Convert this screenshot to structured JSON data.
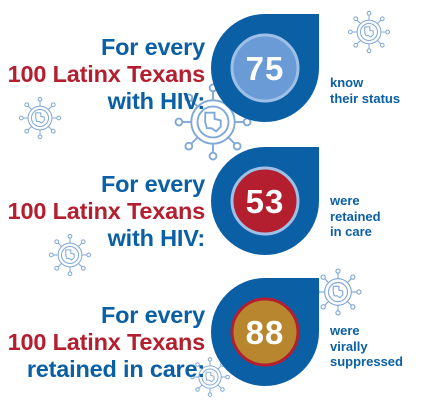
{
  "sections": [
    {
      "heading": [
        "For every",
        "100 Latinx Texans",
        "with HIV:"
      ],
      "number": "75",
      "caption": [
        "know",
        "their status"
      ],
      "inner_color": "#6b9bd7",
      "ring_color": "#0b5fa5"
    },
    {
      "heading": [
        "For every",
        "100 Latinx Texans",
        "with HIV:"
      ],
      "number": "53",
      "caption": [
        "were",
        "retained",
        "in care"
      ],
      "inner_color": "#b31f2e",
      "ring_color": "#0b5fa5"
    },
    {
      "heading": [
        "For every",
        "100 Latinx Texans",
        "retained in care:"
      ],
      "number": "88",
      "caption": [
        "were",
        "virally",
        "suppressed"
      ],
      "inner_color": "#b8862f",
      "ring_color": "#0b5fa5"
    }
  ],
  "colors": {
    "blue": "#0b5fa5",
    "red": "#b31f2e",
    "virus_outline": "#7fa8d6"
  },
  "icons": [
    "virus-texas-icon"
  ]
}
